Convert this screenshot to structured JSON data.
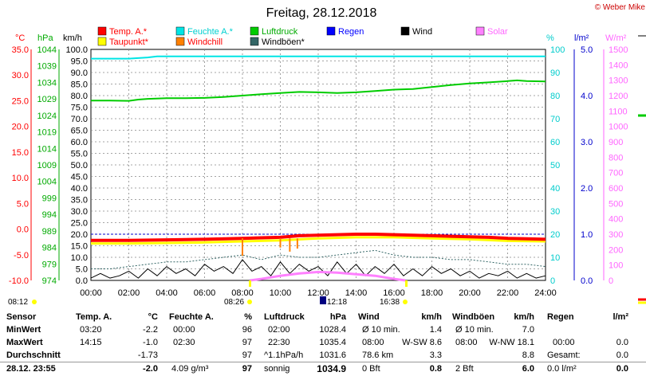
{
  "title": "Freitag, 28.12.2018",
  "credit": "© Weber Mike",
  "legend": [
    {
      "label": "Temp. A.*",
      "color": "#ff0000",
      "text_color": "#ff0000"
    },
    {
      "label": "Feuchte A.*",
      "color": "#00e5e5",
      "text_color": "#00d0d0"
    },
    {
      "label": "Luftdruck",
      "color": "#00cc00",
      "text_color": "#00aa00"
    },
    {
      "label": "Regen",
      "color": "#0000ff",
      "text_color": "#0000ff"
    },
    {
      "label": "Wind",
      "color": "#000000",
      "text_color": "#000000"
    },
    {
      "label": "Solar",
      "color": "#ff80ff",
      "text_color": "#ff66ff"
    },
    {
      "label": "Taupunkt*",
      "color": "#ffff00",
      "text_color": "#ff0000"
    },
    {
      "label": "Windchill",
      "color": "#ff8000",
      "text_color": "#ff0000"
    },
    {
      "label": "Windböen*",
      "color": "#336666",
      "text_color": "#000000"
    }
  ],
  "axis_units": {
    "temp": "°C",
    "pressure": "hPa",
    "wind": "km/h",
    "humidity": "%",
    "rain": "l/m²",
    "solar": "W/m²"
  },
  "sun_times": {
    "sunrise": "08:12",
    "sunrise_pos": "08:26",
    "transit": "12:18",
    "sunset": "16:38"
  },
  "chart_data": {
    "type": "line",
    "x_label": "time",
    "x_ticks": [
      "00:00",
      "02:00",
      "04:00",
      "06:00",
      "08:00",
      "10:00",
      "12:00",
      "14:00",
      "16:00",
      "18:00",
      "20:00",
      "22:00",
      "24:00"
    ],
    "axes": {
      "temp": {
        "ticks": [
          "35.0",
          "30.0",
          "25.0",
          "20.0",
          "15.0",
          "10.0",
          "5.0",
          "0.0",
          "-5.0",
          "-10.0"
        ],
        "min": -10,
        "max": 35,
        "color": "#ff0000"
      },
      "pressure": {
        "ticks": [
          "1044",
          "1039",
          "1034",
          "1029",
          "1024",
          "1019",
          "1014",
          "1009",
          "1004",
          "999",
          "994",
          "989",
          "984",
          "979",
          "974"
        ],
        "min": 974,
        "max": 1044,
        "color": "#00aa00"
      },
      "wind": {
        "ticks": [
          "100.0",
          "95.0",
          "90.0",
          "85.0",
          "80.0",
          "75.0",
          "70.0",
          "65.0",
          "60.0",
          "55.0",
          "50.0",
          "45.0",
          "40.0",
          "35.0",
          "30.0",
          "25.0",
          "20.0",
          "15.0",
          "10.0",
          "5.0",
          "0.0"
        ],
        "min": 0,
        "max": 100,
        "color": "#000000"
      },
      "humidity": {
        "ticks": [
          "100",
          "90",
          "80",
          "70",
          "60",
          "50",
          "40",
          "30",
          "20",
          "10",
          "0"
        ],
        "min": 0,
        "max": 100,
        "color": "#00cccc"
      },
      "rain": {
        "ticks": [
          "5.0",
          "4.0",
          "3.0",
          "2.0",
          "1.0",
          "0.0"
        ],
        "min": 0,
        "max": 5,
        "color": "#0000cc"
      },
      "solar": {
        "ticks": [
          "1500",
          "1400",
          "1300",
          "1200",
          "1100",
          "1000",
          "900",
          "800",
          "700",
          "600",
          "500",
          "400",
          "300",
          "200",
          "100",
          "0"
        ],
        "min": 0,
        "max": 1500,
        "color": "#ff66ff"
      }
    },
    "series": [
      {
        "name": "Luftdruck",
        "axis": "pressure",
        "color": "#00cc00",
        "width": 2,
        "x": [
          0,
          1,
          2,
          2.5,
          3,
          4,
          5,
          6,
          7,
          8,
          9,
          10,
          11,
          12,
          13,
          14,
          15,
          16,
          17,
          18,
          19,
          20,
          21,
          22,
          22.5,
          23,
          24
        ],
        "y": [
          1028.5,
          1028.5,
          1028.4,
          1028.8,
          1029.0,
          1029.2,
          1029.2,
          1029.3,
          1029.6,
          1030.0,
          1030.4,
          1030.8,
          1031.1,
          1031.0,
          1030.8,
          1031.0,
          1031.4,
          1031.8,
          1032.0,
          1032.6,
          1033.2,
          1033.7,
          1034.0,
          1034.4,
          1034.6,
          1034.4,
          1034.3
        ]
      },
      {
        "name": "Feuchte A.",
        "axis": "humidity",
        "color": "#00e5e5",
        "width": 2,
        "x": [
          0,
          2,
          3,
          3.5,
          4,
          6,
          8,
          10,
          12,
          14,
          16,
          18,
          20,
          22,
          24
        ],
        "y": [
          96,
          96,
          96.5,
          97,
          97,
          97,
          97,
          97,
          97,
          97,
          97,
          97,
          97,
          97,
          97
        ]
      },
      {
        "name": "Temp. A.",
        "axis": "temp",
        "color": "#ff0000",
        "width": 4,
        "x": [
          0,
          2,
          4,
          6,
          8,
          9,
          10,
          11,
          12,
          13,
          14,
          15,
          16,
          17,
          18,
          19,
          20,
          21,
          22,
          23,
          24
        ],
        "y": [
          -2.2,
          -2.2,
          -2.1,
          -2.0,
          -1.8,
          -1.7,
          -1.6,
          -1.3,
          -1.2,
          -1.1,
          -1.0,
          -1.0,
          -1.1,
          -1.2,
          -1.3,
          -1.4,
          -1.5,
          -1.6,
          -1.8,
          -1.9,
          -2.0
        ]
      },
      {
        "name": "Taupunkt",
        "axis": "temp",
        "color": "#ffff00",
        "width": 3,
        "x": [
          0,
          2,
          4,
          6,
          8,
          10,
          12,
          14,
          16,
          18,
          20,
          22,
          24
        ],
        "y": [
          -2.8,
          -2.8,
          -2.7,
          -2.6,
          -2.4,
          -2.2,
          -1.8,
          -1.6,
          -1.6,
          -1.8,
          -2.0,
          -2.3,
          -2.4
        ]
      },
      {
        "name": "Windböen",
        "axis": "wind",
        "color": "#336666",
        "width": 1,
        "dash": "2,2",
        "x": [
          0,
          1,
          2,
          3,
          4,
          5,
          6,
          7,
          8,
          9,
          10,
          11,
          12,
          13,
          14,
          15,
          16,
          17,
          18,
          19,
          20,
          21,
          22,
          23,
          24
        ],
        "y": [
          5,
          5,
          6,
          7,
          8,
          8,
          9,
          10,
          11,
          9,
          11,
          10,
          10,
          11,
          12,
          13,
          11,
          10,
          10,
          9,
          9,
          8,
          7,
          7,
          6
        ]
      },
      {
        "name": "Wind",
        "axis": "wind",
        "color": "#000000",
        "width": 1,
        "x": [
          0,
          0.5,
          1,
          1.5,
          2,
          2.5,
          3,
          3.5,
          4,
          4.5,
          5,
          5.5,
          6,
          6.5,
          7,
          7.5,
          8,
          8.5,
          9,
          9.5,
          10,
          10.5,
          11,
          11.5,
          12,
          12.5,
          13,
          13.5,
          14,
          14.5,
          15,
          15.5,
          16,
          16.5,
          17,
          17.5,
          18,
          18.5,
          19,
          19.5,
          20,
          20.5,
          21,
          21.5,
          22,
          22.5,
          23,
          23.5,
          24
        ],
        "y": [
          1,
          3,
          1,
          2,
          4,
          1,
          5,
          2,
          6,
          3,
          5,
          2,
          7,
          4,
          6,
          3,
          9,
          4,
          6,
          2,
          8,
          3,
          7,
          4,
          6,
          2,
          8,
          3,
          7,
          2,
          6,
          3,
          7,
          2,
          5,
          2,
          6,
          3,
          5,
          2,
          4,
          1,
          3,
          2,
          4,
          1,
          3,
          1,
          2
        ]
      },
      {
        "name": "Solar",
        "axis": "solar",
        "color": "#ff80ff",
        "width": 3,
        "x": [
          8.4,
          9,
          10,
          11,
          12,
          13,
          14,
          15,
          16,
          16.6
        ],
        "y": [
          0,
          10,
          30,
          45,
          55,
          50,
          40,
          30,
          10,
          0
        ]
      }
    ],
    "windchill_spikes": [
      {
        "x": 8.0,
        "y": -5.2
      },
      {
        "x": 10.0,
        "y": -3.6
      },
      {
        "x": 10.5,
        "y": -4.4
      },
      {
        "x": 10.9,
        "y": -3.8
      }
    ]
  },
  "table": {
    "headers": {
      "sensor": "Sensor",
      "temp": "Temp. A.",
      "temp_unit": "°C",
      "hum": "Feuchte A.",
      "hum_unit": "%",
      "press": "Luftdruck",
      "press_unit": "hPa",
      "wind": "Wind",
      "wind_unit": "km/h",
      "gust": "Windböen",
      "gust_unit": "km/h",
      "rain": "Regen",
      "rain_unit": "l/m²"
    },
    "min": {
      "label": "MinWert",
      "t_time": "03:20",
      "t_val": "-2.2",
      "h_time": "00:00",
      "h_val": "96",
      "p_time": "02:00",
      "p_val": "1028.4",
      "w_time": "Ø 10 min.",
      "w_val": "1.4",
      "g_time": "Ø 10 min.",
      "g_val": "7.0",
      "r_time": "",
      "r_val": ""
    },
    "max": {
      "label": "MaxWert",
      "t_time": "14:15",
      "t_val": "-1.0",
      "h_time": "02:30",
      "h_val": "97",
      "p_time": "22:30",
      "p_val": "1035.4",
      "w_time": "08:00",
      "w_dir": "W-SW 8.6",
      "g_time": "08:00",
      "g_dir": "W-NW 18.1",
      "r_time": "00:00",
      "r_val": "0.0"
    },
    "avg": {
      "label": "Durchschnitt",
      "t_val": "-1.73",
      "h_val": "97",
      "p_time": "^1.1hPa/h",
      "p_val": "1031.6",
      "w_time": "78.6 km",
      "w_val": "3.3",
      "g_val": "8.8",
      "r_time": "Gesamt:",
      "r_val": "0.0"
    },
    "cur": {
      "label": "28.12. 23:55",
      "t_val": "-2.0",
      "h_time": "4.09 g/m³",
      "h_val": "97",
      "p_time": "sonnig",
      "p_val": "1034.9",
      "w_time": "0 Bft",
      "w_val": "0.8",
      "g_time": "2 Bft",
      "g_val": "6.0",
      "r_time": "0.0 l/m²",
      "r_val": "0.0"
    }
  }
}
